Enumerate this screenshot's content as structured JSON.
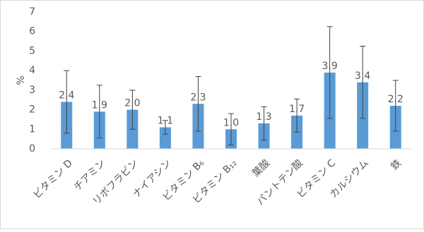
{
  "chart_data": {
    "type": "bar",
    "y_label": "%",
    "categories": [
      "ビタミン D",
      "チアミン",
      "リボフラビン",
      "ナイアシン",
      "ビタミン B₆",
      "ビタミン B₁₂",
      "葉酸",
      "パントテン酸",
      "ビタミン C",
      "カルシウム",
      "鉄"
    ],
    "values": [
      2.4,
      1.9,
      2.0,
      1.1,
      2.3,
      1.0,
      1.3,
      1.7,
      3.9,
      3.4,
      2.2
    ],
    "value_labels": [
      "2.4",
      "1.9",
      "2.0",
      "1.1",
      "2.3",
      "1.0",
      "1.3",
      "1.7",
      "3.9",
      "3.4",
      "2.2"
    ],
    "errors": [
      1.6,
      1.35,
      1.0,
      0.35,
      1.4,
      0.8,
      0.85,
      0.85,
      2.35,
      1.85,
      1.3
    ],
    "color": "#5b9bd5",
    "ylim": [
      0,
      7
    ],
    "yticks": [
      0,
      1,
      2,
      3,
      4,
      5,
      6,
      7
    ],
    "grid": false
  }
}
